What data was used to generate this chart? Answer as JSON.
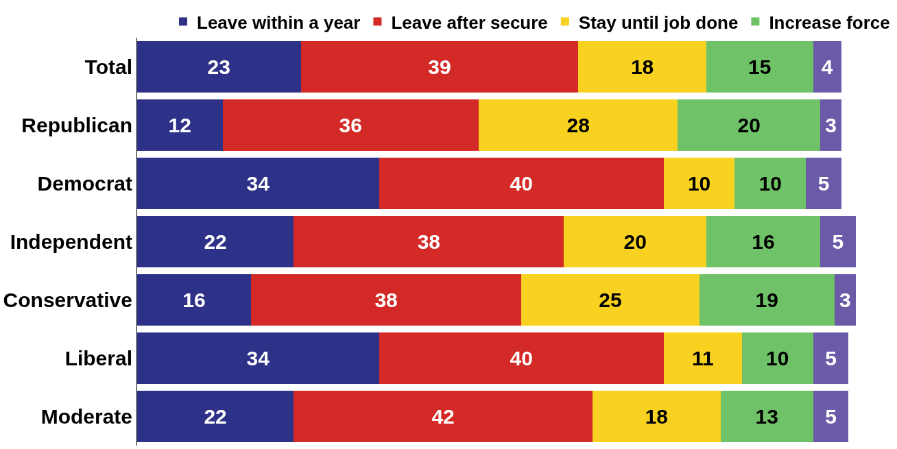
{
  "chart_data": {
    "type": "bar",
    "orientation": "horizontal",
    "stacked": true,
    "data_labels": true,
    "legend": "top",
    "tick_labels": "y",
    "categories": [
      "Total",
      "Republican",
      "Democrat",
      "Independent",
      "Conservative",
      "Liberal",
      "Moderate"
    ],
    "series": [
      {
        "name": "Leave within a year",
        "color": "#2e3188",
        "values": [
          23,
          12,
          34,
          22,
          16,
          34,
          22
        ]
      },
      {
        "name": "Leave after secure",
        "color": "#d42a27",
        "values": [
          39,
          36,
          40,
          38,
          38,
          40,
          42
        ]
      },
      {
        "name": "Stay until job done",
        "color": "#f9d121",
        "values": [
          18,
          28,
          10,
          20,
          25,
          11,
          18
        ]
      },
      {
        "name": "Increase force",
        "color": "#6fc267",
        "values": [
          15,
          20,
          10,
          16,
          19,
          10,
          13
        ]
      },
      {
        "color": "#6a5aa8",
        "values": [
          4,
          3,
          5,
          5,
          3,
          5,
          5
        ]
      }
    ]
  }
}
